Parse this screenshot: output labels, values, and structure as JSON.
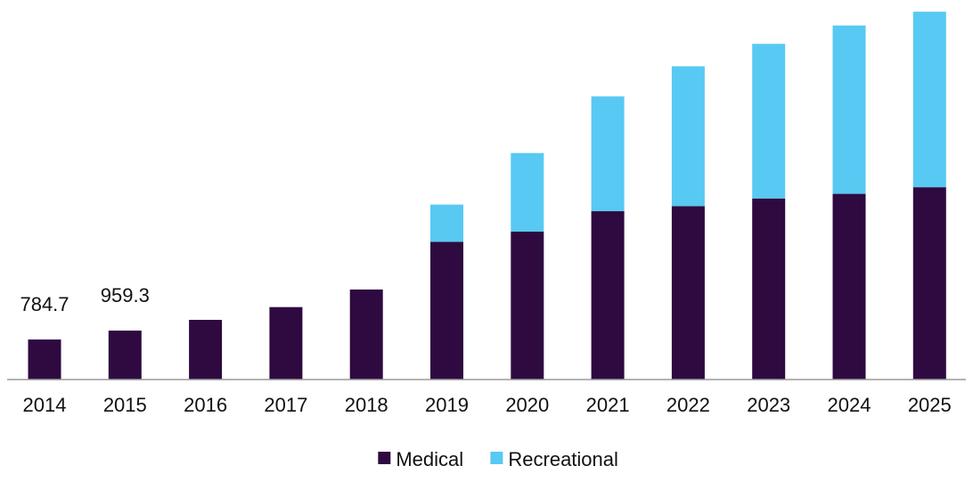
{
  "chart_data": {
    "type": "bar",
    "stacked": true,
    "categories": [
      "2014",
      "2015",
      "2016",
      "2017",
      "2018",
      "2019",
      "2020",
      "2021",
      "2022",
      "2023",
      "2024",
      "2025"
    ],
    "series": [
      {
        "name": "Medical",
        "color": "#2e0a40",
        "values": [
          784.7,
          959.3,
          1170,
          1420,
          1765,
          2700,
          2900,
          3300,
          3400,
          3550,
          3640,
          3770
        ]
      },
      {
        "name": "Recreational",
        "color": "#57c9f2",
        "values": [
          0,
          0,
          0,
          0,
          0,
          730,
          1540,
          2250,
          2740,
          3030,
          3300,
          3440
        ]
      }
    ],
    "data_labels": [
      {
        "category": "2014",
        "text": "784.7"
      },
      {
        "category": "2015",
        "text": "959.3"
      }
    ],
    "legend": {
      "position": "bottom",
      "items": [
        "Medical",
        "Recreational"
      ]
    },
    "grid": false,
    "ylim": [
      0,
      7300
    ]
  }
}
